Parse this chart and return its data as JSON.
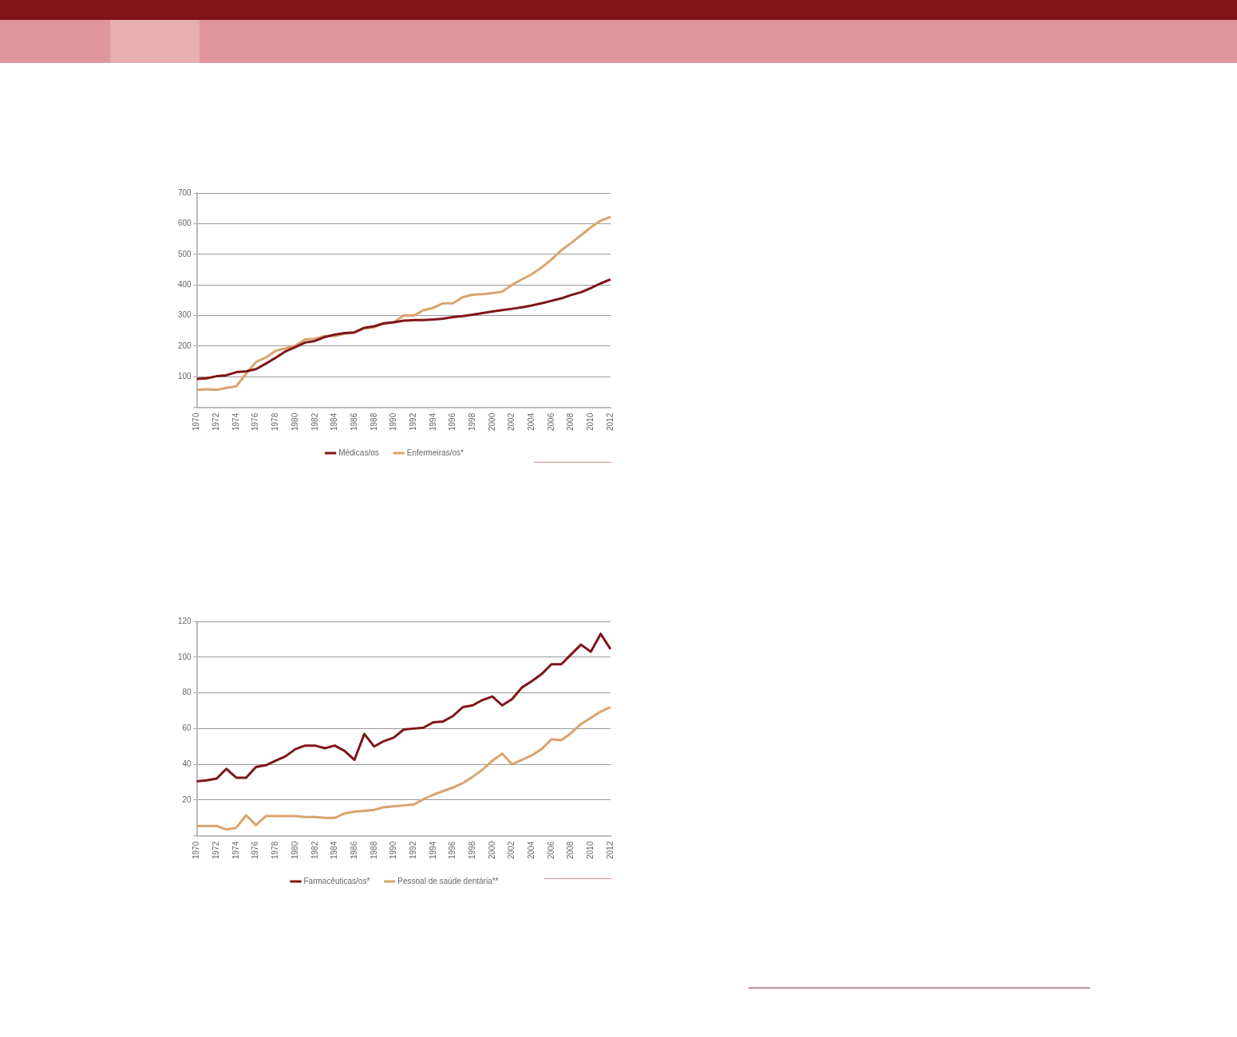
{
  "chart_data": [
    {
      "type": "line",
      "categories": [
        "1970",
        null,
        "1972",
        null,
        "1974",
        null,
        "1976",
        null,
        "1978",
        null,
        "1980",
        null,
        "1982",
        null,
        "1984",
        null,
        "1986",
        null,
        "1988",
        null,
        "1990",
        null,
        "1992",
        null,
        "1994",
        null,
        "1996",
        null,
        "1998",
        null,
        "2000",
        null,
        "2002",
        null,
        "2004",
        null,
        "2006",
        null,
        "2008",
        null,
        "2010",
        null,
        "2012"
      ],
      "series": [
        {
          "name": "Médicas/os",
          "color": "#7f1519",
          "values": [
            93,
            95,
            102,
            105,
            115,
            118,
            125,
            143,
            162,
            183,
            197,
            212,
            217,
            230,
            238,
            243,
            245,
            260,
            265,
            275,
            278,
            283,
            285,
            285,
            287,
            290,
            295,
            298,
            303,
            308,
            313,
            318,
            322,
            327,
            333,
            340,
            348,
            356,
            367,
            376,
            390,
            405,
            418
          ]
        },
        {
          "name": "Enfermeiras/os*",
          "color": "#d9a46e",
          "values": [
            57,
            59,
            57,
            64,
            69,
            110,
            148,
            163,
            185,
            193,
            202,
            222,
            224,
            233,
            233,
            240,
            245,
            258,
            262,
            273,
            278,
            300,
            300,
            317,
            325,
            340,
            340,
            360,
            368,
            370,
            373,
            378,
            400,
            418,
            435,
            457,
            483,
            513,
            537,
            562,
            588,
            610,
            622
          ]
        }
      ],
      "ylim": [
        0,
        700
      ],
      "yticks": [
        {
          "value": 0,
          "label": null
        },
        100,
        200,
        300,
        400,
        500,
        600,
        700
      ],
      "grid": "y",
      "legend": "bottom",
      "marker": "none",
      "line_style": "solid"
    },
    {
      "type": "line",
      "categories": [
        "1970",
        null,
        "1972",
        null,
        "1974",
        null,
        "1976",
        null,
        "1978",
        null,
        "1980",
        null,
        "1982",
        null,
        "1984",
        null,
        "1986",
        null,
        "1988",
        null,
        "1990",
        null,
        "1992",
        null,
        "1994",
        null,
        "1996",
        null,
        "1998",
        null,
        "2000",
        null,
        "2002",
        null,
        "2004",
        null,
        "2006",
        null,
        "2008",
        null,
        "2010",
        null,
        "2012"
      ],
      "series": [
        {
          "name": "Farmacêuticas/os*",
          "color": "#7f1519",
          "values": [
            30.5,
            31,
            32,
            37.5,
            32.5,
            32.5,
            38.5,
            39.5,
            42,
            44.5,
            48.5,
            50.5,
            50.5,
            49,
            50.5,
            47.5,
            42.5,
            57,
            50,
            53,
            55,
            59.5,
            60,
            60.5,
            63.5,
            64,
            67,
            72,
            73,
            76,
            78,
            73,
            76.5,
            83,
            86.5,
            90.5,
            96,
            96,
            101.5,
            107,
            103,
            113,
            104.5
          ]
        },
        {
          "name": "Pessoal de saúde dentária**",
          "color": "#d9a46e",
          "values": [
            5.5,
            5.5,
            5.5,
            3.5,
            4.5,
            11.5,
            6,
            11,
            11,
            11,
            11,
            10.5,
            10.5,
            10,
            10,
            12.5,
            13.5,
            14,
            14.5,
            16,
            16.5,
            17,
            17.5,
            20.5,
            23,
            25,
            27,
            29.5,
            33,
            37,
            42,
            46,
            40,
            42.5,
            45,
            48.5,
            54,
            53.5,
            57.5,
            62.5,
            66,
            69.5,
            72
          ]
        }
      ],
      "ylim": [
        0,
        120
      ],
      "yticks": [
        {
          "value": 0,
          "label": null
        },
        20,
        40,
        60,
        80,
        100,
        120
      ],
      "grid": "y",
      "legend": "bottom",
      "marker": "none",
      "line_style": "solid"
    }
  ]
}
